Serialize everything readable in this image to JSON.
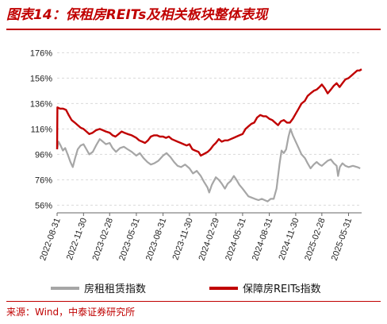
{
  "title": "图表14：保租房REITs及相关板块整体表现",
  "source": "来源：Wind，中泰证券研究所",
  "chart_data": {
    "type": "line",
    "title": "图表14：保租房REITs及相关板块整体表现",
    "xlabel": "",
    "ylabel": "",
    "ylim": [
      50,
      180
    ],
    "yticks": [
      56,
      76,
      96,
      116,
      136,
      156,
      176
    ],
    "ytick_labels": [
      "56%",
      "76%",
      "96%",
      "116%",
      "136%",
      "156%",
      "176%"
    ],
    "xlim": [
      "2022-08-31",
      "2025-07-15"
    ],
    "xtick_labels": [
      "2022-08-31",
      "2022-11-30",
      "2023-02-28",
      "2023-05-31",
      "2023-08-31",
      "2023-11-30",
      "2024-02-29",
      "2024-05-31",
      "2024-08-31",
      "2024-11-30",
      "2025-02-28",
      "2025-05-31"
    ],
    "grid": true,
    "legend": "bottom",
    "series": [
      {
        "name": "房租租赁指数",
        "color": "#a6a6a6",
        "points": [
          [
            "2022-08-31",
            100
          ],
          [
            "2022-09-05",
            106
          ],
          [
            "2022-09-12",
            103
          ],
          [
            "2022-09-20",
            99
          ],
          [
            "2022-09-28",
            101
          ],
          [
            "2022-10-08",
            95
          ],
          [
            "2022-10-16",
            90
          ],
          [
            "2022-10-24",
            86
          ],
          [
            "2022-11-01",
            93
          ],
          [
            "2022-11-10",
            100
          ],
          [
            "2022-11-20",
            103
          ],
          [
            "2022-11-30",
            104
          ],
          [
            "2022-12-10",
            100
          ],
          [
            "2022-12-20",
            96
          ],
          [
            "2023-01-01",
            98
          ],
          [
            "2023-01-12",
            103
          ],
          [
            "2023-01-25",
            108
          ],
          [
            "2023-02-05",
            106
          ],
          [
            "2023-02-15",
            104
          ],
          [
            "2023-02-28",
            105
          ],
          [
            "2023-03-10",
            101
          ],
          [
            "2023-03-22",
            98
          ],
          [
            "2023-04-05",
            101
          ],
          [
            "2023-04-18",
            102
          ],
          [
            "2023-05-01",
            100
          ],
          [
            "2023-05-15",
            98
          ],
          [
            "2023-05-31",
            95
          ],
          [
            "2023-06-12",
            97
          ],
          [
            "2023-06-25",
            93
          ],
          [
            "2023-07-08",
            90
          ],
          [
            "2023-07-20",
            88
          ],
          [
            "2023-08-01",
            89
          ],
          [
            "2023-08-15",
            91
          ],
          [
            "2023-08-31",
            95
          ],
          [
            "2023-09-12",
            97
          ],
          [
            "2023-09-25",
            94
          ],
          [
            "2023-10-08",
            90
          ],
          [
            "2023-10-20",
            87
          ],
          [
            "2023-11-01",
            86
          ],
          [
            "2023-11-15",
            88
          ],
          [
            "2023-11-30",
            85
          ],
          [
            "2023-12-12",
            81
          ],
          [
            "2023-12-25",
            83
          ],
          [
            "2024-01-08",
            79
          ],
          [
            "2024-01-20",
            74
          ],
          [
            "2024-01-31",
            70
          ],
          [
            "2024-02-06",
            66
          ],
          [
            "2024-02-15",
            72
          ],
          [
            "2024-02-29",
            78
          ],
          [
            "2024-03-10",
            76
          ],
          [
            "2024-03-20",
            73
          ],
          [
            "2024-03-31",
            69
          ],
          [
            "2024-04-10",
            73
          ],
          [
            "2024-04-20",
            75
          ],
          [
            "2024-05-01",
            79
          ],
          [
            "2024-05-10",
            76
          ],
          [
            "2024-05-20",
            72
          ],
          [
            "2024-05-31",
            69
          ],
          [
            "2024-06-10",
            66
          ],
          [
            "2024-06-20",
            63
          ],
          [
            "2024-07-01",
            62
          ],
          [
            "2024-07-12",
            61
          ],
          [
            "2024-07-25",
            60
          ],
          [
            "2024-08-05",
            61
          ],
          [
            "2024-08-15",
            60
          ],
          [
            "2024-08-25",
            59
          ],
          [
            "2024-09-05",
            61
          ],
          [
            "2024-09-15",
            61
          ],
          [
            "2024-09-25",
            69
          ],
          [
            "2024-10-05",
            88
          ],
          [
            "2024-10-12",
            99
          ],
          [
            "2024-10-20",
            97
          ],
          [
            "2024-10-28",
            100
          ],
          [
            "2024-11-05",
            110
          ],
          [
            "2024-11-12",
            116
          ],
          [
            "2024-11-20",
            111
          ],
          [
            "2024-11-30",
            106
          ],
          [
            "2024-12-10",
            101
          ],
          [
            "2024-12-20",
            96
          ],
          [
            "2025-01-01",
            93
          ],
          [
            "2025-01-10",
            89
          ],
          [
            "2025-01-20",
            85
          ],
          [
            "2025-01-31",
            88
          ],
          [
            "2025-02-10",
            90
          ],
          [
            "2025-02-20",
            88
          ],
          [
            "2025-02-28",
            87
          ],
          [
            "2025-03-10",
            89
          ],
          [
            "2025-03-20",
            91
          ],
          [
            "2025-03-31",
            92
          ],
          [
            "2025-04-10",
            89
          ],
          [
            "2025-04-20",
            87
          ],
          [
            "2025-04-25",
            79
          ],
          [
            "2025-05-01",
            86
          ],
          [
            "2025-05-10",
            89
          ],
          [
            "2025-05-20",
            87
          ],
          [
            "2025-05-31",
            86
          ],
          [
            "2025-06-15",
            87
          ],
          [
            "2025-06-30",
            86
          ],
          [
            "2025-07-10",
            85
          ]
        ]
      },
      {
        "name": "保障房REITs指数",
        "color": "#c00000",
        "points": [
          [
            "2022-08-31",
            100
          ],
          [
            "2022-09-01",
            133
          ],
          [
            "2022-09-10",
            132
          ],
          [
            "2022-09-20",
            132
          ],
          [
            "2022-10-01",
            131
          ],
          [
            "2022-10-10",
            127
          ],
          [
            "2022-10-20",
            123
          ],
          [
            "2022-10-31",
            121
          ],
          [
            "2022-11-10",
            119
          ],
          [
            "2022-11-20",
            117
          ],
          [
            "2022-11-30",
            116
          ],
          [
            "2022-12-10",
            114
          ],
          [
            "2022-12-20",
            112
          ],
          [
            "2022-12-31",
            113
          ],
          [
            "2023-01-12",
            115
          ],
          [
            "2023-01-25",
            116
          ],
          [
            "2023-02-05",
            115
          ],
          [
            "2023-02-15",
            114
          ],
          [
            "2023-02-28",
            113
          ],
          [
            "2023-03-10",
            111
          ],
          [
            "2023-03-20",
            110
          ],
          [
            "2023-03-31",
            112
          ],
          [
            "2023-04-10",
            114
          ],
          [
            "2023-04-20",
            113
          ],
          [
            "2023-05-01",
            112
          ],
          [
            "2023-05-15",
            111
          ],
          [
            "2023-05-31",
            109
          ],
          [
            "2023-06-10",
            107
          ],
          [
            "2023-06-20",
            106
          ],
          [
            "2023-06-30",
            105
          ],
          [
            "2023-07-10",
            107
          ],
          [
            "2023-07-20",
            110
          ],
          [
            "2023-07-31",
            111
          ],
          [
            "2023-08-10",
            111
          ],
          [
            "2023-08-20",
            110
          ],
          [
            "2023-08-31",
            110
          ],
          [
            "2023-09-10",
            109
          ],
          [
            "2023-09-20",
            110
          ],
          [
            "2023-09-30",
            108
          ],
          [
            "2023-10-10",
            107
          ],
          [
            "2023-10-20",
            106
          ],
          [
            "2023-10-31",
            105
          ],
          [
            "2023-11-10",
            104
          ],
          [
            "2023-11-20",
            103
          ],
          [
            "2023-11-30",
            104
          ],
          [
            "2023-12-10",
            100
          ],
          [
            "2023-12-20",
            99
          ],
          [
            "2023-12-31",
            98
          ],
          [
            "2024-01-08",
            95
          ],
          [
            "2024-01-16",
            96
          ],
          [
            "2024-01-24",
            97
          ],
          [
            "2024-02-01",
            98
          ],
          [
            "2024-02-10",
            100
          ],
          [
            "2024-02-20",
            103
          ],
          [
            "2024-02-29",
            105
          ],
          [
            "2024-03-10",
            108
          ],
          [
            "2024-03-20",
            106
          ],
          [
            "2024-03-31",
            107
          ],
          [
            "2024-04-10",
            107
          ],
          [
            "2024-04-20",
            108
          ],
          [
            "2024-04-30",
            109
          ],
          [
            "2024-05-10",
            110
          ],
          [
            "2024-05-20",
            111
          ],
          [
            "2024-05-31",
            112
          ],
          [
            "2024-06-10",
            116
          ],
          [
            "2024-06-20",
            118
          ],
          [
            "2024-06-30",
            120
          ],
          [
            "2024-07-10",
            121
          ],
          [
            "2024-07-20",
            125
          ],
          [
            "2024-07-31",
            127
          ],
          [
            "2024-08-10",
            126
          ],
          [
            "2024-08-20",
            126
          ],
          [
            "2024-08-31",
            124
          ],
          [
            "2024-09-10",
            123
          ],
          [
            "2024-09-20",
            121
          ],
          [
            "2024-09-30",
            119
          ],
          [
            "2024-10-10",
            122
          ],
          [
            "2024-10-20",
            123
          ],
          [
            "2024-10-31",
            121
          ],
          [
            "2024-11-10",
            121
          ],
          [
            "2024-11-20",
            124
          ],
          [
            "2024-11-30",
            128
          ],
          [
            "2024-12-10",
            132
          ],
          [
            "2024-12-20",
            136
          ],
          [
            "2024-12-31",
            138
          ],
          [
            "2025-01-10",
            142
          ],
          [
            "2025-01-20",
            144
          ],
          [
            "2025-01-31",
            146
          ],
          [
            "2025-02-10",
            147
          ],
          [
            "2025-02-20",
            149
          ],
          [
            "2025-02-28",
            151
          ],
          [
            "2025-03-10",
            148
          ],
          [
            "2025-03-20",
            144
          ],
          [
            "2025-03-31",
            147
          ],
          [
            "2025-04-10",
            150
          ],
          [
            "2025-04-20",
            152
          ],
          [
            "2025-04-30",
            149
          ],
          [
            "2025-05-10",
            152
          ],
          [
            "2025-05-20",
            155
          ],
          [
            "2025-05-31",
            156
          ],
          [
            "2025-06-10",
            158
          ],
          [
            "2025-06-20",
            160
          ],
          [
            "2025-06-30",
            162
          ],
          [
            "2025-07-08",
            162
          ],
          [
            "2025-07-15",
            163
          ]
        ]
      }
    ]
  }
}
